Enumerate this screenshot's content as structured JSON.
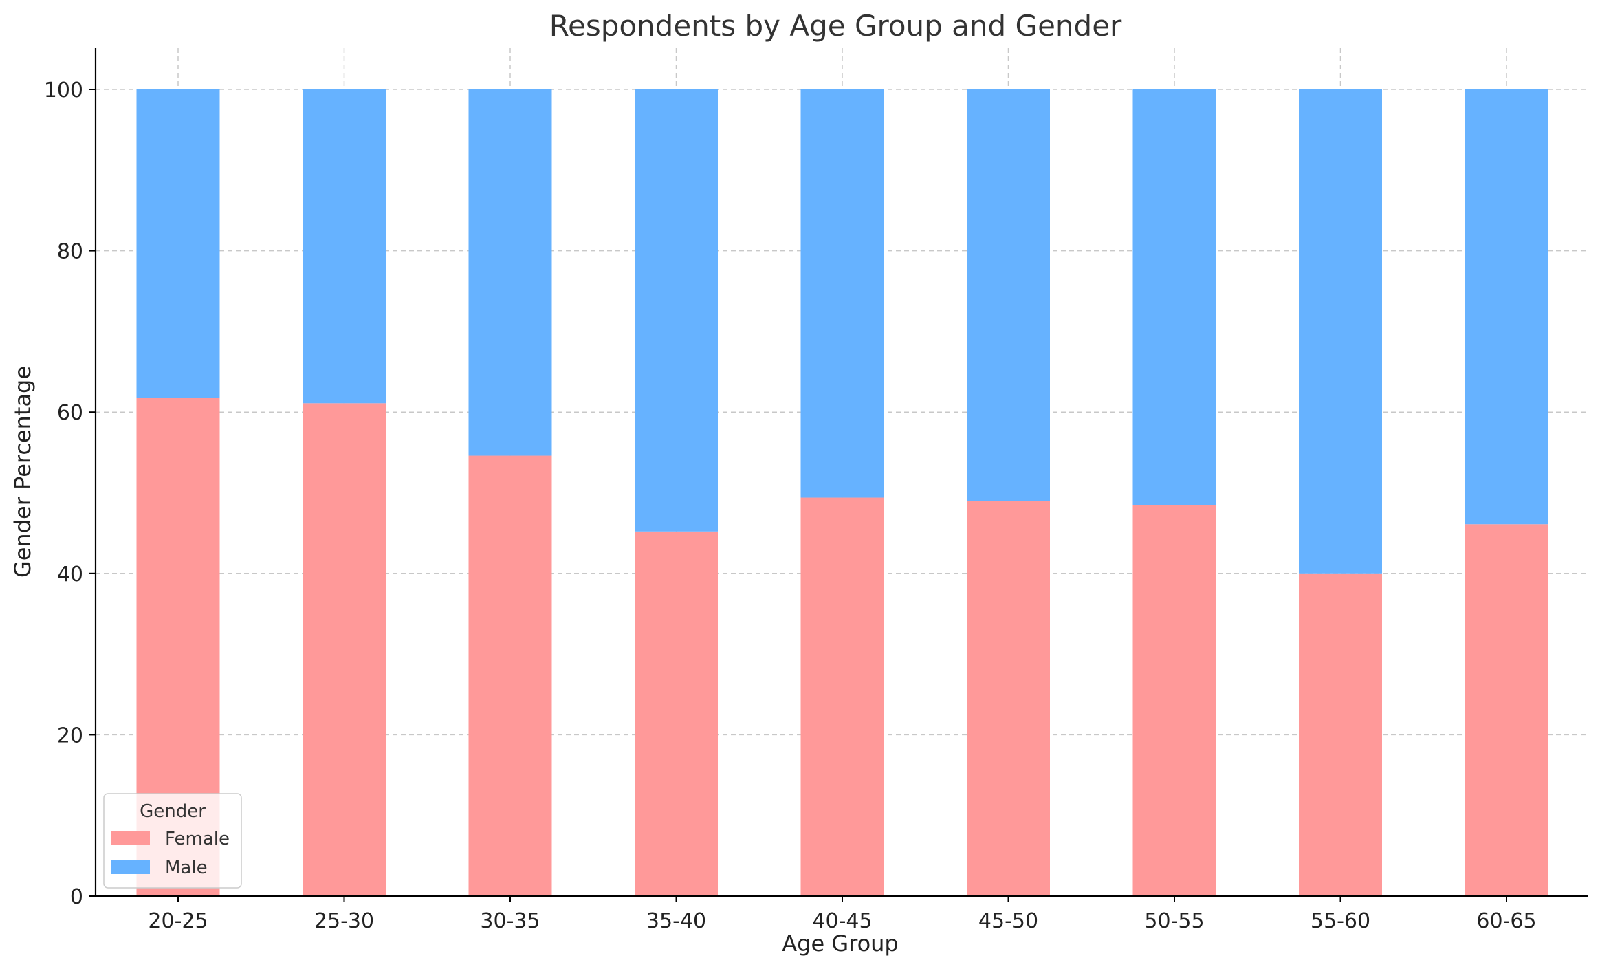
{
  "chart_data": {
    "type": "bar",
    "stacked": true,
    "title": "Respondents by Age Group and Gender",
    "xlabel": "Age Group",
    "ylabel": "Gender Percentage",
    "categories": [
      "20-25",
      "25-30",
      "30-35",
      "35-40",
      "40-45",
      "45-50",
      "50-55",
      "55-60",
      "60-65"
    ],
    "series": [
      {
        "name": "Female",
        "color": "#ff9999",
        "values": [
          61.8,
          61.1,
          54.6,
          45.2,
          49.4,
          49.0,
          48.5,
          40.0,
          46.1
        ]
      },
      {
        "name": "Male",
        "color": "#66b2ff",
        "values": [
          38.2,
          38.9,
          45.4,
          54.8,
          50.6,
          51.0,
          51.5,
          60.0,
          53.9
        ]
      }
    ],
    "ylim": [
      0,
      105
    ],
    "yticks": [
      0,
      20,
      40,
      60,
      80,
      100
    ],
    "grid": true,
    "legend": {
      "title": "Gender",
      "position": "lower-left"
    }
  }
}
